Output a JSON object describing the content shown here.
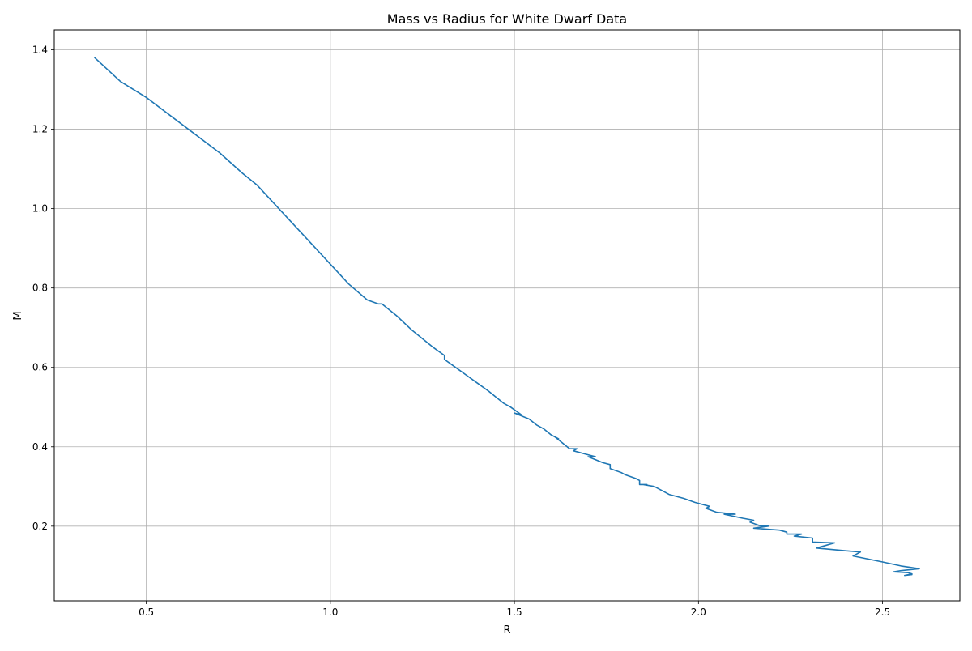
{
  "chart_data": {
    "type": "line",
    "title": "Mass vs Radius for White Dwarf Data",
    "xlabel": "R",
    "ylabel": "M",
    "xlim": [
      0.25,
      2.71
    ],
    "ylim": [
      0.012,
      1.45
    ],
    "x_ticks": [
      0.5,
      1.0,
      1.5,
      2.0,
      2.5
    ],
    "x_tick_labels": [
      "0.5",
      "1.0",
      "1.5",
      "2.0",
      "2.5"
    ],
    "y_ticks": [
      0.2,
      0.4,
      0.6,
      0.8,
      1.0,
      1.2,
      1.4
    ],
    "y_tick_labels": [
      "0.2",
      "0.4",
      "0.6",
      "0.8",
      "1.0",
      "1.2",
      "1.4"
    ],
    "grid": true,
    "series_color": "#1f77b4",
    "series": [
      {
        "x": [
          0.36,
          0.43,
          0.5,
          0.6,
          0.7,
          0.76,
          0.8,
          0.85,
          0.9,
          0.95,
          1.0,
          1.05,
          1.1,
          1.13,
          1.14,
          1.18,
          1.22,
          1.26,
          1.28,
          1.31,
          1.31,
          1.34,
          1.37,
          1.4,
          1.43,
          1.45,
          1.47,
          1.49,
          1.52,
          1.5,
          1.54,
          1.56,
          1.58,
          1.6,
          1.62,
          1.61,
          1.63,
          1.65,
          1.67,
          1.66,
          1.7,
          1.72,
          1.7,
          1.74,
          1.76,
          1.76,
          1.79,
          1.8,
          1.83,
          1.84,
          1.84,
          1.86,
          1.85,
          1.88,
          1.9,
          1.92,
          1.96,
          1.99,
          2.03,
          2.02,
          2.05,
          2.08,
          2.1,
          2.07,
          2.12,
          2.15,
          2.14,
          2.17,
          2.19,
          2.15,
          2.22,
          2.24,
          2.24,
          2.28,
          2.26,
          2.31,
          2.31,
          2.37,
          2.34,
          2.32,
          2.4,
          2.44,
          2.42,
          2.5,
          2.55,
          2.6,
          2.55,
          2.53,
          2.57,
          2.58,
          2.56,
          2.58
        ],
        "y": [
          1.38,
          1.32,
          1.28,
          1.21,
          1.14,
          1.09,
          1.06,
          1.01,
          0.96,
          0.91,
          0.86,
          0.81,
          0.77,
          0.76,
          0.76,
          0.73,
          0.695,
          0.665,
          0.65,
          0.63,
          0.62,
          0.6,
          0.58,
          0.56,
          0.54,
          0.525,
          0.51,
          0.5,
          0.48,
          0.485,
          0.47,
          0.455,
          0.445,
          0.43,
          0.42,
          0.425,
          0.41,
          0.395,
          0.395,
          0.39,
          0.38,
          0.375,
          0.375,
          0.36,
          0.355,
          0.345,
          0.335,
          0.33,
          0.32,
          0.315,
          0.305,
          0.305,
          0.305,
          0.3,
          0.29,
          0.28,
          0.27,
          0.26,
          0.25,
          0.245,
          0.235,
          0.232,
          0.23,
          0.23,
          0.22,
          0.215,
          0.21,
          0.2,
          0.2,
          0.195,
          0.19,
          0.185,
          0.18,
          0.18,
          0.175,
          0.17,
          0.16,
          0.158,
          0.15,
          0.145,
          0.138,
          0.135,
          0.125,
          0.11,
          0.1,
          0.093,
          0.088,
          0.085,
          0.083,
          0.08,
          0.076,
          0.078
        ]
      }
    ]
  }
}
